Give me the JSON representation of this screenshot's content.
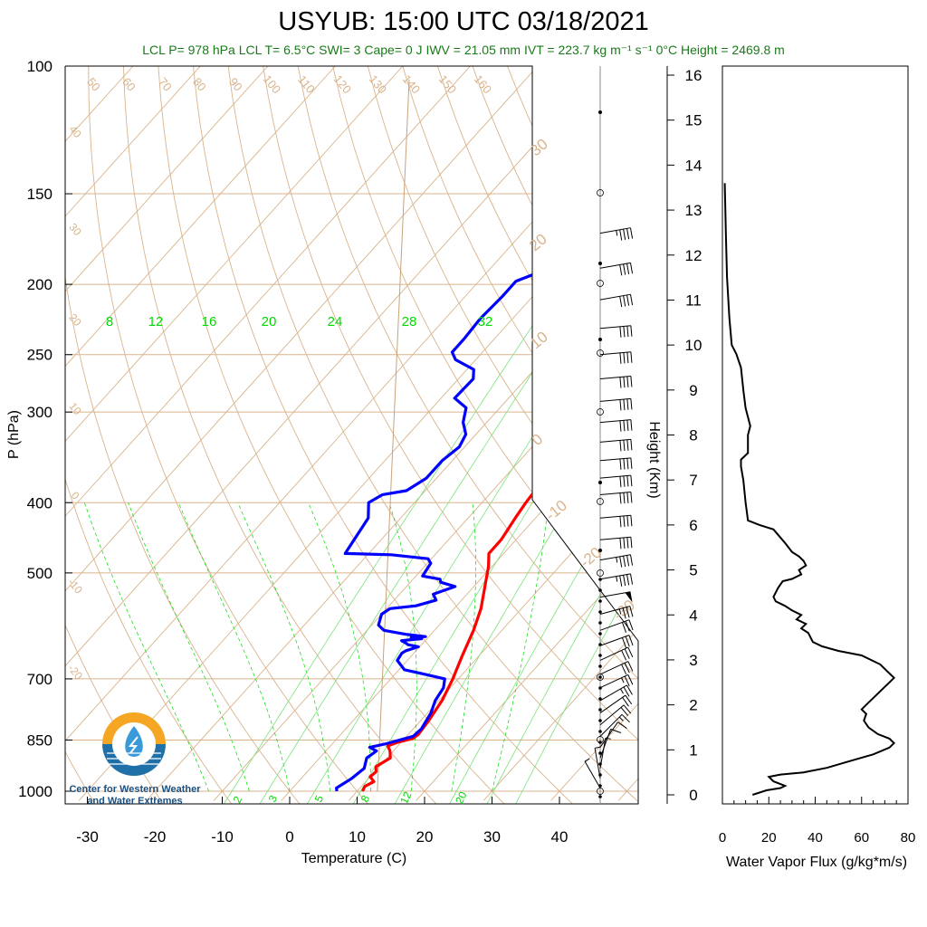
{
  "header": {
    "title": "USYUB: 15:00 UTC 03/18/2021",
    "subtitle": "LCL P= 978 hPa  LCL T= 6.5°C  SWI= 3  Cape= 0 J  IWV = 21.05 mm  IVT = 223.7 kg m⁻¹ s⁻¹  0°C Height = 2469.8 m"
  },
  "logo": {
    "line1": "Center for Western Weather",
    "line2": "and Water Extremes"
  },
  "colors": {
    "temperature": "#ff0000",
    "dewpoint": "#0000ff",
    "isotherm_lines": "#d9b38c",
    "mixing_ratio": "#00dd00",
    "subtitle": "#1a7a1a",
    "flux": "#000000"
  },
  "chart_data": [
    {
      "type": "line",
      "name": "skew-t",
      "xlabel": "Temperature (C)",
      "ylabel": "P (hPa)",
      "xlim": [
        -34,
        52
      ],
      "ylim": [
        1030,
        100
      ],
      "yscale": "log",
      "x_ticks": [
        "-30",
        "-20",
        "-10",
        "0",
        "10",
        "20",
        "30",
        "40"
      ],
      "x_tick_values": [
        -30,
        -20,
        -10,
        0,
        10,
        20,
        30,
        40
      ],
      "y_ticks": [
        "100",
        "150",
        "200",
        "250",
        "300",
        "400",
        "500",
        "700",
        "850",
        "1000"
      ],
      "y_tick_values": [
        100,
        150,
        200,
        250,
        300,
        400,
        500,
        700,
        850,
        1000
      ],
      "isotherm_labels": [
        "50",
        "60",
        "70",
        "80",
        "90",
        "100",
        "110",
        "120",
        "130",
        "140",
        "150",
        "160"
      ],
      "isotherm_left_labels": [
        "40",
        "30",
        "20",
        "10",
        "0",
        "-10",
        "-20"
      ],
      "isotherm_right_labels": [
        "30",
        "20",
        "10",
        "0",
        "-10",
        "-20",
        "-30"
      ],
      "mixing_ratio_top_labels": [
        "8",
        "12",
        "16",
        "20",
        "24",
        "28",
        "32"
      ],
      "mixing_ratio_top_values": [
        8,
        12,
        16,
        20,
        24,
        28,
        32
      ],
      "mixing_ratio_bottom_labels": [
        "2",
        "3",
        "5",
        "8",
        "12",
        "20"
      ],
      "mixing_ratio_bottom_values": [
        2,
        3,
        5,
        8,
        12,
        20
      ],
      "series": [
        {
          "key": "temperature",
          "points": [
            [
              10.8,
              1000
            ],
            [
              10.5,
              985
            ],
            [
              11.2,
              970
            ],
            [
              10.0,
              955
            ],
            [
              10.2,
              940
            ],
            [
              9.5,
              925
            ],
            [
              10.5,
              900
            ],
            [
              9.5,
              880
            ],
            [
              8.5,
              866
            ],
            [
              9.5,
              856
            ],
            [
              11.2,
              846
            ],
            [
              11.5,
              835
            ],
            [
              11.2,
              800
            ],
            [
              10.5,
              750
            ],
            [
              9.2,
              700
            ],
            [
              7.5,
              650
            ],
            [
              5.8,
              600
            ],
            [
              4.0,
              560
            ],
            [
              1.5,
              520
            ],
            [
              -0.5,
              490
            ],
            [
              -2.2,
              470
            ],
            [
              -2.2,
              450
            ],
            [
              -3.0,
              420
            ],
            [
              -3.5,
              400
            ],
            [
              -4.0,
              370
            ],
            [
              -5.5,
              345
            ],
            [
              -9.0,
              310
            ],
            [
              -12.0,
              285
            ],
            [
              -15.8,
              255
            ],
            [
              -13.5,
              240
            ],
            [
              -13.5,
              228
            ],
            [
              -12.2,
              215
            ],
            [
              -12.0,
              200
            ],
            [
              -11.0,
              195
            ],
            [
              -7.8,
              190
            ],
            [
              -5.8,
              180
            ],
            [
              -4.0,
              170
            ],
            [
              -4.0,
              160
            ],
            [
              -3.5,
              155
            ],
            [
              -4.0,
              150
            ]
          ]
        },
        {
          "key": "dewpoint",
          "points": [
            [
              7.0,
              1000
            ],
            [
              6.5,
              990
            ],
            [
              7.5,
              960
            ],
            [
              8.0,
              930
            ],
            [
              7.0,
              900
            ],
            [
              7.5,
              880
            ],
            [
              6.0,
              870
            ],
            [
              8.0,
              860
            ],
            [
              11.0,
              840
            ],
            [
              11.2,
              820
            ],
            [
              10.5,
              780
            ],
            [
              9.5,
              750
            ],
            [
              9.0,
              720
            ],
            [
              8.0,
              700
            ],
            [
              4.5,
              690
            ],
            [
              0.8,
              680
            ],
            [
              -1.5,
              660
            ],
            [
              -1.8,
              645
            ],
            [
              -1.5,
              640
            ],
            [
              -0.2,
              632
            ],
            [
              -2.0,
              628
            ],
            [
              -2.5,
              625
            ],
            [
              -3.5,
              620
            ],
            [
              -0.8,
              616
            ],
            [
              -2.5,
              614
            ],
            [
              -0.5,
              612
            ],
            [
              -3.5,
              608
            ],
            [
              -7.5,
              600
            ],
            [
              -9.0,
              590
            ],
            [
              -10.0,
              570
            ],
            [
              -9.5,
              560
            ],
            [
              -6.0,
              555
            ],
            [
              -3.8,
              545
            ],
            [
              -5.0,
              535
            ],
            [
              -2.8,
              522
            ],
            [
              -5.5,
              515
            ],
            [
              -6.0,
              510
            ],
            [
              -9.0,
              505
            ],
            [
              -9.5,
              485
            ],
            [
              -10.5,
              478
            ],
            [
              -16.5,
              472
            ],
            [
              -23.5,
              470
            ],
            [
              -24.8,
              420
            ],
            [
              -26.8,
              400
            ],
            [
              -25.8,
              390
            ],
            [
              -22.8,
              385
            ],
            [
              -21.5,
              370
            ],
            [
              -21.5,
              350
            ],
            [
              -20.8,
              335
            ],
            [
              -21.5,
              322
            ],
            [
              -23.5,
              310
            ],
            [
              -25.0,
              296
            ],
            [
              -28.0,
              287
            ],
            [
              -27.8,
              270
            ],
            [
              -29.0,
              262
            ],
            [
              -33.0,
              254
            ],
            [
              -34.5,
              248
            ],
            [
              -34.5,
              238
            ],
            [
              -34.8,
              223
            ],
            [
              -34.5,
              208
            ],
            [
              -34.5,
              198
            ],
            [
              -32.5,
              193
            ],
            [
              -31.5,
              187
            ],
            [
              -28.5,
              178
            ],
            [
              -26.5,
              168
            ],
            [
              -24.5,
              160
            ],
            [
              -23.0,
              155
            ],
            [
              -24.0,
              150
            ]
          ]
        }
      ],
      "wind_barbs": [
        {
          "pressure": 170,
          "dir": 260,
          "speed": 45
        },
        {
          "pressure": 190,
          "dir": 260,
          "speed": 40
        },
        {
          "pressure": 210,
          "dir": 260,
          "speed": 40
        },
        {
          "pressure": 230,
          "dir": 265,
          "speed": 40
        },
        {
          "pressure": 250,
          "dir": 265,
          "speed": 40
        },
        {
          "pressure": 270,
          "dir": 265,
          "speed": 40
        },
        {
          "pressure": 290,
          "dir": 265,
          "speed": 40
        },
        {
          "pressure": 310,
          "dir": 265,
          "speed": 40
        },
        {
          "pressure": 330,
          "dir": 265,
          "speed": 40
        },
        {
          "pressure": 350,
          "dir": 265,
          "speed": 40
        },
        {
          "pressure": 370,
          "dir": 265,
          "speed": 40
        },
        {
          "pressure": 390,
          "dir": 265,
          "speed": 40
        },
        {
          "pressure": 420,
          "dir": 265,
          "speed": 40
        },
        {
          "pressure": 450,
          "dir": 265,
          "speed": 40
        },
        {
          "pressure": 480,
          "dir": 260,
          "speed": 45
        },
        {
          "pressure": 510,
          "dir": 260,
          "speed": 45
        },
        {
          "pressure": 540,
          "dir": 260,
          "speed": 50
        },
        {
          "pressure": 570,
          "dir": 255,
          "speed": 35
        },
        {
          "pressure": 600,
          "dir": 250,
          "speed": 30
        },
        {
          "pressure": 630,
          "dir": 250,
          "speed": 30
        },
        {
          "pressure": 660,
          "dir": 245,
          "speed": 30
        },
        {
          "pressure": 690,
          "dir": 245,
          "speed": 30
        },
        {
          "pressure": 720,
          "dir": 245,
          "speed": 25
        },
        {
          "pressure": 750,
          "dir": 240,
          "speed": 25
        },
        {
          "pressure": 780,
          "dir": 235,
          "speed": 20
        },
        {
          "pressure": 810,
          "dir": 230,
          "speed": 20
        },
        {
          "pressure": 840,
          "dir": 225,
          "speed": 15
        },
        {
          "pressure": 870,
          "dir": 215,
          "speed": 10
        },
        {
          "pressure": 900,
          "dir": 200,
          "speed": 10
        },
        {
          "pressure": 930,
          "dir": 190,
          "speed": 5
        },
        {
          "pressure": 960,
          "dir": 170,
          "speed": 5
        },
        {
          "pressure": 990,
          "dir": 150,
          "speed": 5
        }
      ]
    },
    {
      "type": "line",
      "name": "water-vapor-flux",
      "xlabel": "Water Vapor Flux (g/kg*m/s)",
      "ylabel": "Height (Km)",
      "xlim": [
        0,
        80
      ],
      "ylim": [
        0,
        16.5
      ],
      "x_ticks": [
        "0",
        "20",
        "40",
        "60",
        "80"
      ],
      "x_tick_values": [
        0,
        20,
        40,
        60,
        80
      ],
      "y_ticks": [
        "0",
        "1",
        "2",
        "3",
        "4",
        "5",
        "6",
        "7",
        "8",
        "9",
        "10",
        "11",
        "12",
        "13",
        "14",
        "15",
        "16"
      ],
      "y_tick_values": [
        0,
        1,
        2,
        3,
        4,
        5,
        6,
        7,
        8,
        9,
        10,
        11,
        12,
        13,
        14,
        15,
        16
      ],
      "points": [
        [
          13,
          0.0
        ],
        [
          19,
          0.1
        ],
        [
          25,
          0.15
        ],
        [
          27,
          0.2
        ],
        [
          22,
          0.3
        ],
        [
          20,
          0.4
        ],
        [
          25,
          0.45
        ],
        [
          35,
          0.5
        ],
        [
          45,
          0.6
        ],
        [
          55,
          0.75
        ],
        [
          65,
          0.9
        ],
        [
          72,
          1.05
        ],
        [
          74,
          1.15
        ],
        [
          72,
          1.25
        ],
        [
          67,
          1.35
        ],
        [
          63,
          1.5
        ],
        [
          61,
          1.65
        ],
        [
          62,
          1.8
        ],
        [
          60,
          1.9
        ],
        [
          63,
          2.05
        ],
        [
          66,
          2.2
        ],
        [
          69,
          2.35
        ],
        [
          72,
          2.5
        ],
        [
          74,
          2.6
        ],
        [
          71,
          2.75
        ],
        [
          68,
          2.9
        ],
        [
          60,
          3.1
        ],
        [
          50,
          3.2
        ],
        [
          43,
          3.3
        ],
        [
          39,
          3.4
        ],
        [
          37,
          3.6
        ],
        [
          34,
          3.7
        ],
        [
          36,
          3.8
        ],
        [
          32,
          3.9
        ],
        [
          34,
          4.0
        ],
        [
          30,
          4.1
        ],
        [
          27,
          4.2
        ],
        [
          23,
          4.3
        ],
        [
          22,
          4.4
        ],
        [
          24,
          4.6
        ],
        [
          26,
          4.75
        ],
        [
          30,
          4.8
        ],
        [
          34,
          4.9
        ],
        [
          33,
          5.0
        ],
        [
          36,
          5.1
        ],
        [
          35,
          5.2
        ],
        [
          33,
          5.3
        ],
        [
          30,
          5.4
        ],
        [
          27,
          5.6
        ],
        [
          22,
          5.9
        ],
        [
          16,
          6.0
        ],
        [
          11,
          6.1
        ],
        [
          10,
          6.5
        ],
        [
          9,
          7.0
        ],
        [
          8,
          7.3
        ],
        [
          8,
          7.45
        ],
        [
          11,
          7.6
        ],
        [
          11,
          8.0
        ],
        [
          12,
          8.2
        ],
        [
          10,
          8.6
        ],
        [
          9,
          9.0
        ],
        [
          8,
          9.5
        ],
        [
          6,
          9.8
        ],
        [
          4,
          10.0
        ],
        [
          3,
          10.6
        ],
        [
          2,
          11.5
        ],
        [
          1.5,
          12.5
        ],
        [
          1,
          13.6
        ]
      ]
    }
  ]
}
